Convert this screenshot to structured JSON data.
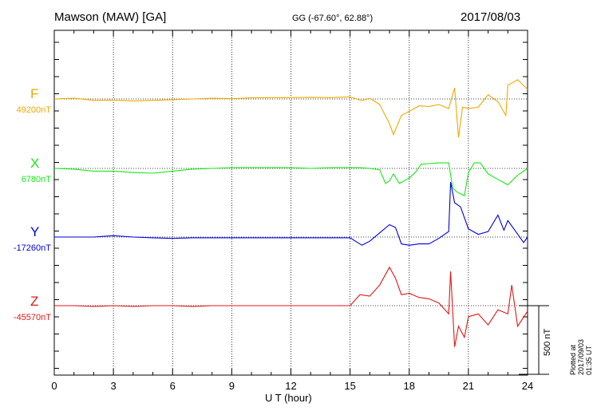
{
  "header": {
    "station": "Mawson (MAW)  [GA]",
    "coords": "GG (-67.60°,  62.88°)",
    "date": "2017/08/03"
  },
  "footer_note": "Plotted at 2017/09/03 01:35 UT",
  "scale_bar": {
    "label": "500 nT",
    "value_nT": 500
  },
  "chart_data": {
    "type": "line",
    "xlabel": "U T (hour)",
    "xlim": [
      0,
      24
    ],
    "xticks": [
      0,
      3,
      6,
      9,
      12,
      15,
      18,
      21,
      24
    ],
    "grid": true,
    "series": [
      {
        "name": "F",
        "baseline_label": "49200nT",
        "baseline_nT": 49200,
        "color": "#f0a800",
        "points": [
          [
            0,
            0
          ],
          [
            1,
            5
          ],
          [
            2,
            -10
          ],
          [
            3,
            -8
          ],
          [
            4,
            -15
          ],
          [
            5,
            -10
          ],
          [
            6,
            -5
          ],
          [
            7,
            0
          ],
          [
            8,
            5
          ],
          [
            9,
            2
          ],
          [
            10,
            8
          ],
          [
            11,
            10
          ],
          [
            12,
            10
          ],
          [
            13,
            12
          ],
          [
            14,
            10
          ],
          [
            15,
            15
          ],
          [
            15.6,
            -12
          ],
          [
            16,
            5
          ],
          [
            16.5,
            -40
          ],
          [
            17,
            -180
          ],
          [
            17.2,
            -260
          ],
          [
            17.6,
            -120
          ],
          [
            18,
            -90
          ],
          [
            18.5,
            -50
          ],
          [
            19,
            -55
          ],
          [
            19.5,
            -40
          ],
          [
            20,
            -70
          ],
          [
            20.3,
            80
          ],
          [
            20.5,
            -280
          ],
          [
            20.7,
            -60
          ],
          [
            21,
            -70
          ],
          [
            21.5,
            -60
          ],
          [
            22,
            30
          ],
          [
            22.5,
            -20
          ],
          [
            22.9,
            -120
          ],
          [
            23,
            100
          ],
          [
            23.5,
            140
          ],
          [
            24,
            70
          ]
        ]
      },
      {
        "name": "X",
        "baseline_label": "6780nT",
        "baseline_nT": 6780,
        "color": "#19e619",
        "points": [
          [
            0,
            0
          ],
          [
            1,
            -5
          ],
          [
            2,
            -20
          ],
          [
            3,
            -20
          ],
          [
            4,
            -30
          ],
          [
            5,
            -35
          ],
          [
            6,
            -20
          ],
          [
            7,
            -5
          ],
          [
            8,
            0
          ],
          [
            9,
            5
          ],
          [
            10,
            5
          ],
          [
            11,
            5
          ],
          [
            12,
            5
          ],
          [
            13,
            0
          ],
          [
            14,
            5
          ],
          [
            15,
            5
          ],
          [
            15.5,
            5
          ],
          [
            16,
            0
          ],
          [
            16.5,
            -10
          ],
          [
            16.8,
            -110
          ],
          [
            17,
            -90
          ],
          [
            17.2,
            -40
          ],
          [
            17.5,
            -110
          ],
          [
            18,
            -70
          ],
          [
            18.3,
            -30
          ],
          [
            18.6,
            30
          ],
          [
            19,
            35
          ],
          [
            19.5,
            40
          ],
          [
            20,
            40
          ],
          [
            20.2,
            -140
          ],
          [
            20.4,
            -170
          ],
          [
            20.8,
            -200
          ],
          [
            21,
            -30
          ],
          [
            21.3,
            40
          ],
          [
            21.6,
            40
          ],
          [
            22,
            -40
          ],
          [
            22.5,
            -80
          ],
          [
            23,
            -120
          ],
          [
            23.5,
            -50
          ],
          [
            24,
            0
          ]
        ]
      },
      {
        "name": "Y",
        "baseline_label": "-17260nT",
        "baseline_nT": -17260,
        "color": "#0000d8",
        "points": [
          [
            0,
            0
          ],
          [
            1,
            0
          ],
          [
            2,
            0
          ],
          [
            3,
            10
          ],
          [
            4,
            0
          ],
          [
            5,
            -5
          ],
          [
            6,
            -10
          ],
          [
            7,
            -5
          ],
          [
            8,
            -5
          ],
          [
            9,
            -5
          ],
          [
            10,
            -5
          ],
          [
            11,
            -5
          ],
          [
            12,
            -5
          ],
          [
            13,
            -5
          ],
          [
            14,
            -5
          ],
          [
            15,
            -5
          ],
          [
            15.6,
            -60
          ],
          [
            16,
            -30
          ],
          [
            16.5,
            30
          ],
          [
            17,
            90
          ],
          [
            17.3,
            70
          ],
          [
            17.6,
            -50
          ],
          [
            18,
            -60
          ],
          [
            18.5,
            -50
          ],
          [
            19,
            -50
          ],
          [
            19.5,
            -10
          ],
          [
            20,
            40
          ],
          [
            20.1,
            400
          ],
          [
            20.3,
            250
          ],
          [
            20.6,
            220
          ],
          [
            21,
            60
          ],
          [
            21.5,
            20
          ],
          [
            22,
            40
          ],
          [
            22.5,
            160
          ],
          [
            22.8,
            50
          ],
          [
            23,
            120
          ],
          [
            23.4,
            40
          ],
          [
            23.8,
            -40
          ],
          [
            24,
            0
          ]
        ]
      },
      {
        "name": "Z",
        "baseline_label": "-45570nT",
        "baseline_nT": -45570,
        "color": "#e01818",
        "points": [
          [
            0,
            0
          ],
          [
            1,
            0
          ],
          [
            2,
            -5
          ],
          [
            3,
            0
          ],
          [
            4,
            -5
          ],
          [
            5,
            0
          ],
          [
            6,
            0
          ],
          [
            7,
            -5
          ],
          [
            8,
            0
          ],
          [
            9,
            0
          ],
          [
            10,
            0
          ],
          [
            11,
            0
          ],
          [
            12,
            0
          ],
          [
            13,
            0
          ],
          [
            14,
            0
          ],
          [
            15,
            0
          ],
          [
            15.5,
            80
          ],
          [
            16,
            70
          ],
          [
            16.5,
            150
          ],
          [
            17,
            280
          ],
          [
            17.3,
            200
          ],
          [
            17.6,
            80
          ],
          [
            18,
            90
          ],
          [
            18.5,
            60
          ],
          [
            19,
            50
          ],
          [
            19.5,
            20
          ],
          [
            20,
            -60
          ],
          [
            20.1,
            250
          ],
          [
            20.3,
            -300
          ],
          [
            20.5,
            -150
          ],
          [
            20.8,
            -230
          ],
          [
            21,
            -80
          ],
          [
            21.5,
            -60
          ],
          [
            22,
            -140
          ],
          [
            22.5,
            -30
          ],
          [
            23,
            -60
          ],
          [
            23.2,
            150
          ],
          [
            23.5,
            -150
          ],
          [
            24,
            -40
          ]
        ]
      }
    ]
  }
}
